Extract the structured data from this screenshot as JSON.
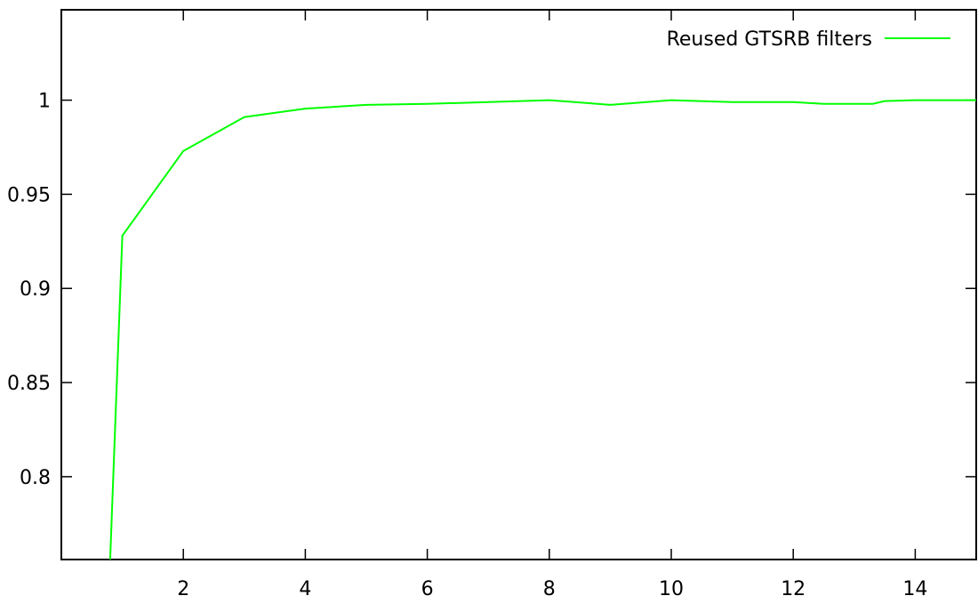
{
  "chart_data": {
    "type": "line",
    "title": "",
    "xlabel": "",
    "ylabel": "",
    "xlim": [
      0,
      15
    ],
    "ylim": [
      0.756,
      1.048
    ],
    "xticks": [
      2,
      4,
      6,
      8,
      10,
      12,
      14
    ],
    "xtick_labels": [
      "2",
      "4",
      "6",
      "8",
      "10",
      "12",
      "14"
    ],
    "yticks": [
      0.8,
      0.85,
      0.9,
      0.95,
      1.0
    ],
    "ytick_labels": [
      "0.8",
      "0.85",
      "0.9",
      "0.95",
      "1"
    ],
    "grid": false,
    "legend_position": "top-right",
    "series": [
      {
        "name": "Reused GTSRB filters",
        "color": "#00ff00",
        "x": [
          0.8,
          1,
          2,
          3,
          4,
          5,
          6,
          7,
          8,
          9,
          10,
          11,
          12,
          12.5,
          13.3,
          13.5,
          14,
          15
        ],
        "y": [
          0.756,
          0.928,
          0.973,
          0.991,
          0.9955,
          0.9975,
          0.998,
          0.999,
          1.0,
          0.9975,
          1.0,
          0.999,
          0.999,
          0.998,
          0.998,
          0.9995,
          1.0,
          1.0
        ]
      }
    ]
  }
}
